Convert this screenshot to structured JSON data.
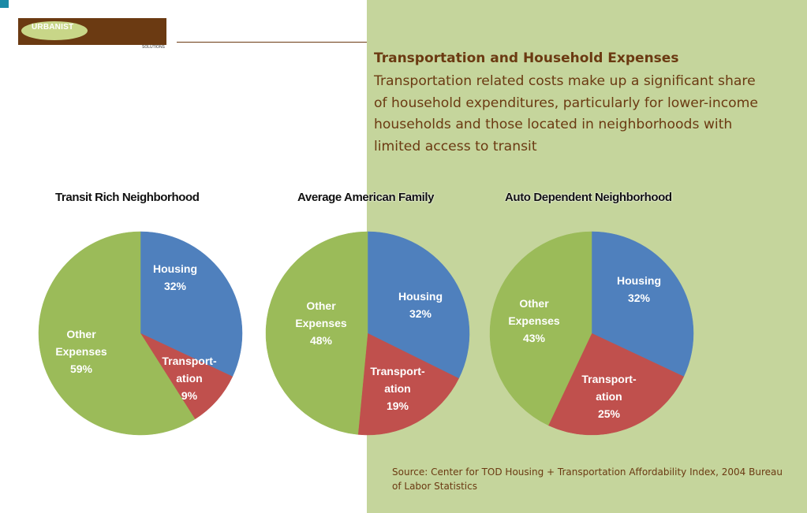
{
  "logo": {
    "name": "URBANIST",
    "sub": "SOLUTIONS"
  },
  "heading": "Transportation and Household Expenses",
  "body": "Transportation related costs make up a significant share of household expenditures, particularly for lower-income households and those located in neighborhoods with limited access to transit",
  "source": "Source: Center for TOD Housing + Transportation Affordability Index, 2004 Bureau of Labor Statistics",
  "colors": {
    "housing": "#4f80bd",
    "transportation": "#c0504d",
    "other": "#9bbb59",
    "panel": "#c5d59c",
    "text": "#6b3a12"
  },
  "chart_data": [
    {
      "type": "pie",
      "title": "Transit Rich Neighborhood",
      "slices": [
        {
          "label": "Housing",
          "value": 32,
          "display": "32%"
        },
        {
          "label": "Transport-ation",
          "value": 9,
          "display": "9%"
        },
        {
          "label": "Other Expenses",
          "value": 59,
          "display": "59%"
        }
      ]
    },
    {
      "type": "pie",
      "title": "Average American Family",
      "slices": [
        {
          "label": "Housing",
          "value": 32,
          "display": "32%"
        },
        {
          "label": "Transport-ation",
          "value": 19,
          "display": "19%"
        },
        {
          "label": "Other Expenses",
          "value": 48,
          "display": "48%"
        }
      ]
    },
    {
      "type": "pie",
      "title": "Auto Dependent Neighborhood",
      "slices": [
        {
          "label": "Housing",
          "value": 32,
          "display": "32%"
        },
        {
          "label": "Transport-ation",
          "value": 25,
          "display": "25%"
        },
        {
          "label": "Other Expenses",
          "value": 43,
          "display": "43%"
        }
      ]
    }
  ]
}
